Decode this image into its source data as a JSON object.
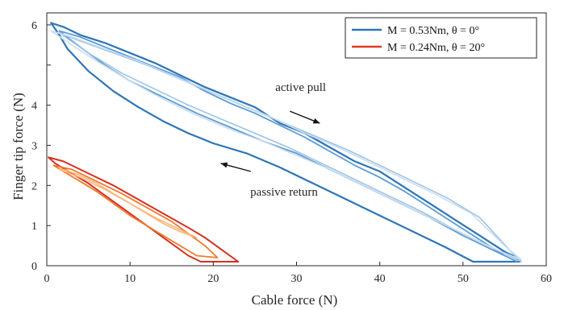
{
  "chart_data": {
    "type": "line",
    "xlabel": "Cable force (N)",
    "ylabel": "Finger tip force (N)",
    "xlim": [
      0,
      60
    ],
    "ylim": [
      0,
      6.3
    ],
    "x_ticks": [
      0,
      10,
      20,
      30,
      40,
      50,
      60
    ],
    "y_ticks": [
      0,
      1,
      2,
      3,
      4,
      6
    ],
    "grid": false,
    "legend_position": "top-right",
    "legend": [
      {
        "label": "M = 0.53Nm, θ = 0°",
        "color": "#2e75b6"
      },
      {
        "label": "M = 0.24Nm, θ = 20°",
        "color": "#e03a1e"
      }
    ],
    "annotations": [
      {
        "text": "active pull",
        "x": 30.5,
        "y": 4.35,
        "arrow_from": [
          29.2,
          3.85
        ],
        "arrow_to": [
          32.8,
          3.55
        ]
      },
      {
        "text": "passive return",
        "x": 28.5,
        "y": 1.75,
        "arrow_from": [
          24.5,
          2.35
        ],
        "arrow_to": [
          20.9,
          2.55
        ]
      }
    ],
    "series": [
      {
        "group": 1,
        "color": "#2e75b6",
        "width": 2.2,
        "x": [
          0.5,
          2,
          4,
          7,
          10,
          13,
          16,
          19,
          22,
          25,
          28,
          31,
          34,
          37,
          40,
          43,
          46,
          49,
          52,
          55,
          56.5,
          56.8,
          51.2,
          48,
          44,
          40,
          36,
          32,
          28,
          24,
          20,
          17,
          14,
          11,
          8,
          5,
          2.5,
          1.5,
          0.5
        ],
        "y": [
          6.05,
          5.95,
          5.75,
          5.55,
          5.3,
          5.05,
          4.75,
          4.45,
          4.2,
          3.95,
          3.55,
          3.3,
          2.95,
          2.6,
          2.35,
          1.95,
          1.55,
          1.15,
          0.75,
          0.35,
          0.2,
          0.1,
          0.1,
          0.45,
          0.85,
          1.25,
          1.65,
          2.05,
          2.45,
          2.8,
          3.05,
          3.3,
          3.6,
          3.95,
          4.35,
          4.85,
          5.4,
          5.75,
          6.05
        ]
      },
      {
        "group": 1,
        "color": "#5b9bd5",
        "width": 1.8,
        "x": [
          1.5,
          4,
          7,
          10,
          13,
          16,
          19,
          22,
          25,
          28,
          31,
          34,
          37,
          40,
          43,
          46,
          49,
          52,
          55,
          56.5,
          54,
          50,
          46,
          42,
          38,
          34,
          30,
          26,
          22,
          18,
          14,
          10,
          7,
          4,
          1.5
        ],
        "y": [
          5.85,
          5.7,
          5.45,
          5.2,
          4.95,
          4.7,
          4.35,
          4.05,
          3.8,
          3.5,
          3.2,
          2.85,
          2.5,
          2.2,
          1.85,
          1.45,
          1.05,
          0.65,
          0.25,
          0.1,
          0.35,
          0.75,
          1.2,
          1.6,
          2.0,
          2.4,
          2.8,
          3.1,
          3.45,
          3.8,
          4.2,
          4.6,
          5.0,
          5.45,
          5.85
        ]
      },
      {
        "group": 1,
        "color": "#9dc3e6",
        "width": 1.6,
        "x": [
          1.5,
          4,
          8,
          12,
          16,
          20,
          24,
          28,
          32,
          36,
          40,
          44,
          48,
          52,
          56,
          57,
          53,
          49,
          45,
          41,
          37,
          33,
          29,
          25,
          21,
          17,
          13,
          9,
          5,
          1.5
        ],
        "y": [
          5.8,
          5.6,
          5.3,
          5.0,
          4.65,
          4.3,
          3.95,
          3.6,
          3.25,
          2.9,
          2.5,
          2.1,
          1.7,
          1.2,
          0.3,
          0.1,
          0.5,
          0.9,
          1.35,
          1.75,
          2.15,
          2.55,
          2.95,
          3.3,
          3.65,
          4.0,
          4.4,
          4.8,
          5.3,
          5.8
        ]
      },
      {
        "group": 1,
        "color": "#c9ddf0",
        "width": 1.6,
        "x": [
          0.5,
          3,
          7,
          11,
          15,
          19,
          23,
          27,
          31,
          35,
          39,
          43,
          47,
          51,
          55,
          57,
          54,
          50,
          46,
          42,
          38,
          34,
          30,
          26,
          22,
          18,
          14,
          10,
          6,
          3,
          0.5
        ],
        "y": [
          5.85,
          5.7,
          5.4,
          5.1,
          4.75,
          4.4,
          4.05,
          3.7,
          3.3,
          2.95,
          2.55,
          2.15,
          1.75,
          1.3,
          0.5,
          0.15,
          0.4,
          0.8,
          1.2,
          1.6,
          2.0,
          2.4,
          2.75,
          3.1,
          3.4,
          3.75,
          4.15,
          4.6,
          5.1,
          5.5,
          5.85
        ]
      },
      {
        "group": 2,
        "color": "#d7301f",
        "width": 2.0,
        "x": [
          0.2,
          2,
          5,
          8,
          11,
          14,
          17,
          19,
          21,
          23,
          18.5,
          17,
          15,
          13,
          11,
          9,
          7,
          5,
          3,
          1,
          0.2
        ],
        "y": [
          2.7,
          2.6,
          2.3,
          2.0,
          1.65,
          1.3,
          0.95,
          0.7,
          0.4,
          0.1,
          0.1,
          0.25,
          0.55,
          0.85,
          1.15,
          1.45,
          1.75,
          2.05,
          2.3,
          2.55,
          2.7
        ]
      },
      {
        "group": 2,
        "color": "#f07a2c",
        "width": 1.8,
        "x": [
          0.8,
          3,
          6,
          9,
          12,
          15,
          17,
          19,
          20.5,
          18,
          16,
          14,
          12,
          10,
          8,
          6,
          4,
          2,
          0.8
        ],
        "y": [
          2.5,
          2.4,
          2.1,
          1.8,
          1.45,
          1.1,
          0.8,
          0.5,
          0.2,
          0.25,
          0.5,
          0.75,
          1.0,
          1.25,
          1.55,
          1.85,
          2.1,
          2.35,
          2.5
        ]
      },
      {
        "group": 2,
        "color": "#f9b47a",
        "width": 1.6,
        "x": [
          1.5,
          4,
          7,
          10,
          13,
          16,
          18,
          16,
          14,
          12,
          10,
          8,
          6,
          4,
          2,
          1.5
        ],
        "y": [
          2.4,
          2.2,
          1.9,
          1.55,
          1.2,
          0.9,
          0.7,
          0.85,
          1.05,
          1.3,
          1.55,
          1.8,
          2.05,
          2.25,
          2.4,
          2.4
        ]
      }
    ]
  }
}
